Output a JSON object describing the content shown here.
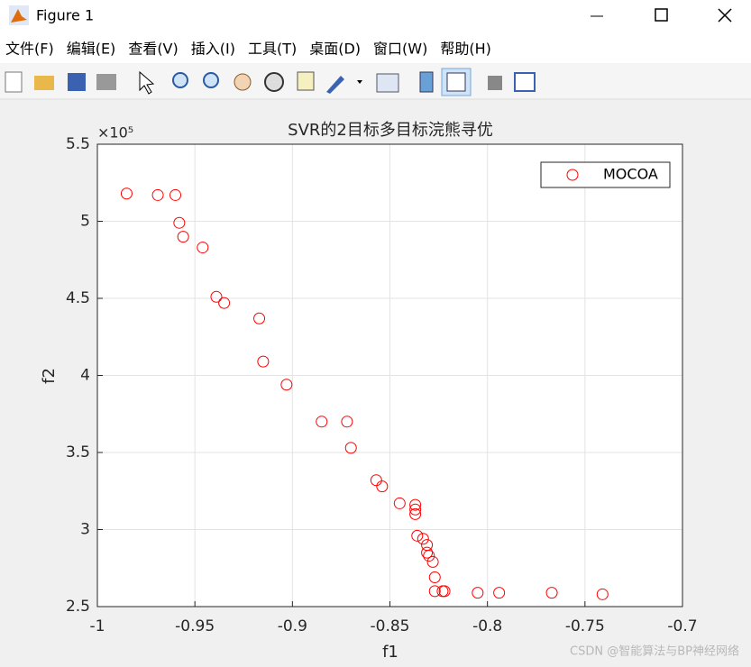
{
  "window": {
    "title": "Figure 1",
    "menu": [
      "文件(F)",
      "编辑(E)",
      "查看(V)",
      "插入(I)",
      "工具(T)",
      "桌面(D)",
      "窗口(W)",
      "帮助(H)"
    ]
  },
  "watermark": "CSDN @智能算法与BP神经网络",
  "chart_data": {
    "type": "scatter",
    "title": "SVR的2目标多目标浣熊寻优",
    "x_label": "f1",
    "y_label": "f2",
    "y_multiplier": "×10⁵",
    "x": [
      -0.985,
      -0.969,
      -0.96,
      -0.958,
      -0.956,
      -0.946,
      -0.939,
      -0.935,
      -0.917,
      -0.915,
      -0.903,
      -0.885,
      -0.872,
      -0.87,
      -0.857,
      -0.854,
      -0.845,
      -0.837,
      -0.837,
      -0.837,
      -0.836,
      -0.833,
      -0.831,
      -0.831,
      -0.83,
      -0.828,
      -0.827,
      -0.827,
      -0.823,
      -0.822,
      -0.805,
      -0.794,
      -0.767,
      -0.741
    ],
    "series": [
      {
        "name": "MOCOA",
        "color": "#ff0000",
        "values": [
          5.18,
          5.17,
          5.17,
          4.99,
          4.9,
          4.83,
          4.51,
          4.47,
          4.37,
          4.09,
          3.94,
          3.7,
          3.7,
          3.53,
          3.32,
          3.28,
          3.17,
          3.16,
          3.13,
          3.1,
          2.96,
          2.94,
          2.9,
          2.85,
          2.83,
          2.79,
          2.69,
          2.6,
          2.6,
          2.6,
          2.59,
          2.59,
          2.59,
          2.58
        ]
      }
    ],
    "xlim": [
      -1,
      -0.7
    ],
    "xticks": [
      -1,
      -0.95,
      -0.9,
      -0.85,
      -0.8,
      -0.75,
      -0.7
    ],
    "ylim": [
      2.5,
      5.5
    ],
    "yticks": [
      2.5,
      3,
      3.5,
      4,
      4.5,
      5,
      5.5
    ],
    "grid": true,
    "legend": "northeast"
  }
}
